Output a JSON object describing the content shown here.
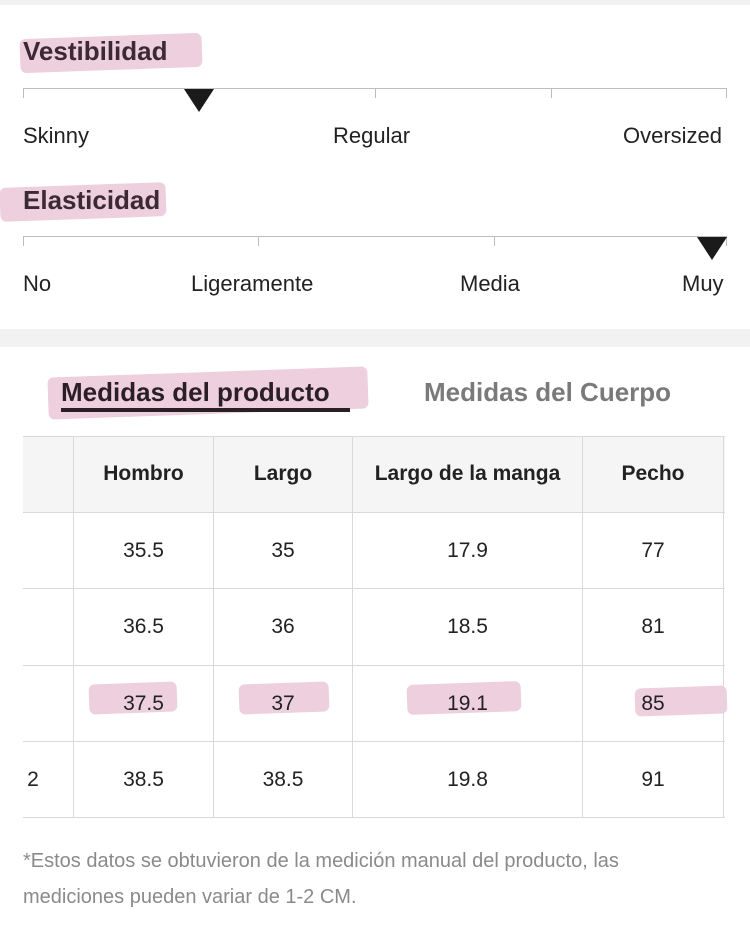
{
  "fit": {
    "title": "Vestibilidad",
    "labels": [
      "Skinny",
      "Regular",
      "Oversized"
    ],
    "level": 0.25
  },
  "elasticity": {
    "title": "Elasticidad",
    "labels": [
      "No",
      "Ligeramente",
      "Media",
      "Muy"
    ],
    "level": 1.0
  },
  "tabs": [
    {
      "label": "Medidas del producto",
      "active": true
    },
    {
      "label": "Medidas del Cuerpo",
      "active": false
    }
  ],
  "table": {
    "headers": [
      "",
      "Hombro",
      "Largo",
      "Largo de la manga",
      "Pecho"
    ],
    "rows": [
      [
        "",
        "35.5",
        "35",
        "17.9",
        "77"
      ],
      [
        "",
        "36.5",
        "36",
        "18.5",
        "81"
      ],
      [
        "",
        "37.5",
        "37",
        "19.1",
        "85"
      ],
      [
        "2",
        "38.5",
        "38.5",
        "19.8",
        "91"
      ]
    ],
    "highlighted_row": 2
  },
  "note": "*Estos datos se obtuvieron de la medición manual del producto, las mediciones pueden variar de 1-2 CM.",
  "colors": {
    "highlight": "#e7bfd2",
    "title": "#3c2a33",
    "marker": "#1a1a1a",
    "background_band": "#f2f2f2"
  }
}
